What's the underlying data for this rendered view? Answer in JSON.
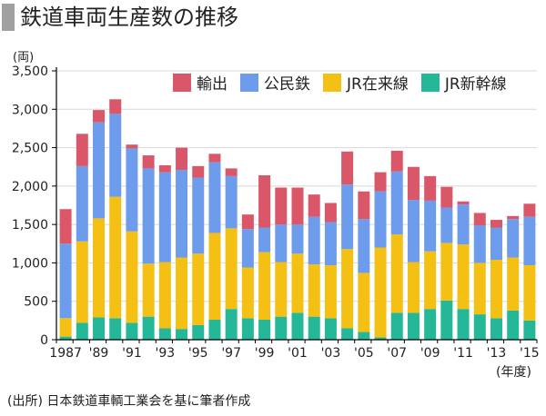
{
  "page": {
    "title": "鉄道車両生産数の推移",
    "unit": "(両)",
    "x_unit": "(年度)",
    "source": "(出所) 日本鉄道車輌工業会を基に筆者作成"
  },
  "colors": {
    "export": "#d95769",
    "public": "#6d9ced",
    "jr_conv": "#f3c013",
    "jr_shinkansen": "#24b898",
    "axis": "#000000",
    "grid": "#d8d8d8"
  },
  "chart_data": {
    "type": "bar",
    "stacked": true,
    "title": "鉄道車両生産数の推移",
    "ylabel": "(両)",
    "xlabel": "(年度)",
    "ylim": [
      0,
      3500
    ],
    "yticks": [
      0,
      500,
      1000,
      1500,
      2000,
      2500,
      3000,
      3500
    ],
    "ytick_labels": [
      "0",
      "500",
      "1,000",
      "1,500",
      "2,000",
      "2,500",
      "3,000",
      "3,500"
    ],
    "grid": true,
    "legend_position": "top",
    "categories": [
      "1987",
      "1988",
      "1989",
      "1990",
      "1991",
      "1992",
      "1993",
      "1994",
      "1995",
      "1996",
      "1997",
      "1998",
      "1999",
      "2000",
      "2001",
      "2002",
      "2003",
      "2004",
      "2005",
      "2006",
      "2007",
      "2008",
      "2009",
      "2010",
      "2011",
      "2012",
      "2013",
      "2014",
      "2015"
    ],
    "tick_labels": [
      "1987",
      "",
      "'89",
      "",
      "'91",
      "",
      "'93",
      "",
      "'95",
      "",
      "'97",
      "",
      "'99",
      "",
      "'01",
      "",
      "'03",
      "",
      "'05",
      "",
      "'07",
      "",
      "'09",
      "",
      "'11",
      "",
      "'13",
      "",
      "'15"
    ],
    "series": [
      {
        "name": "JR新幹線",
        "key": "jr_shinkansen",
        "values": [
          40,
          220,
          290,
          280,
          220,
          300,
          150,
          140,
          190,
          260,
          400,
          280,
          260,
          300,
          350,
          300,
          280,
          150,
          100,
          30,
          350,
          350,
          400,
          510,
          400,
          330,
          280,
          380,
          250
        ]
      },
      {
        "name": "JR在来線",
        "key": "jr_conv",
        "values": [
          240,
          1060,
          1290,
          1580,
          1190,
          690,
          860,
          930,
          930,
          1130,
          1050,
          660,
          880,
          710,
          770,
          680,
          690,
          1030,
          770,
          1170,
          1020,
          660,
          750,
          750,
          840,
          670,
          760,
          690,
          720
        ]
      },
      {
        "name": "公民鉄",
        "key": "public",
        "values": [
          970,
          980,
          1250,
          1080,
          1080,
          1240,
          1170,
          1140,
          990,
          920,
          680,
          500,
          320,
          490,
          380,
          620,
          560,
          840,
          700,
          730,
          820,
          810,
          660,
          460,
          520,
          490,
          420,
          500,
          630
        ]
      },
      {
        "name": "輸出",
        "key": "export",
        "values": [
          450,
          420,
          160,
          190,
          50,
          170,
          90,
          290,
          150,
          110,
          100,
          190,
          680,
          480,
          480,
          290,
          250,
          430,
          360,
          250,
          270,
          430,
          320,
          270,
          40,
          160,
          100,
          40,
          170
        ]
      }
    ],
    "legend_order": [
      "輸出",
      "公民鉄",
      "JR在来線",
      "JR新幹線"
    ]
  }
}
